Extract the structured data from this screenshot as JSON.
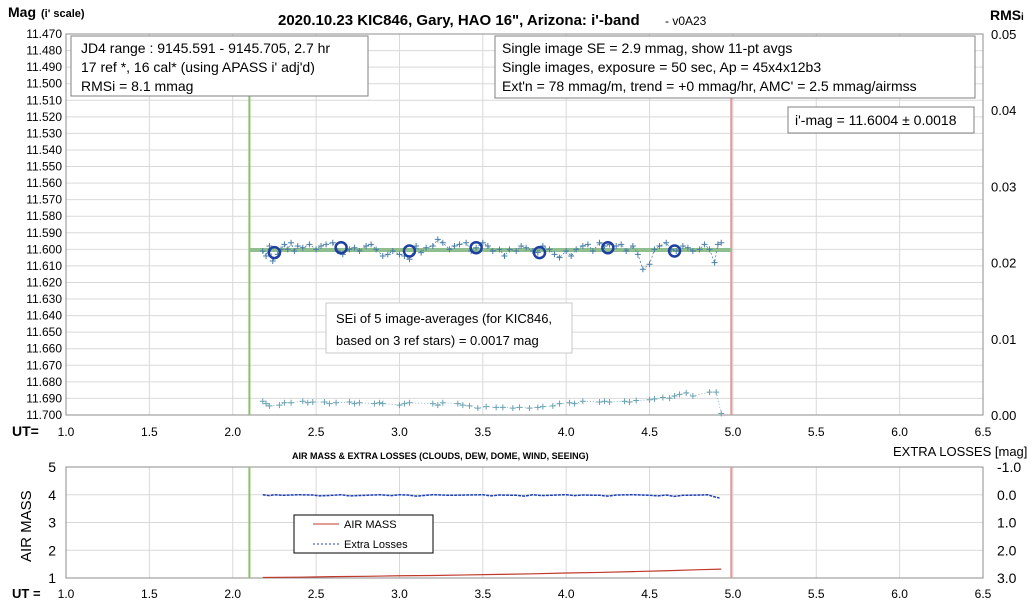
{
  "title": "2020.10.23 KIC846, Gary, HAO 16\", Arizona: i'-band",
  "version": "- v0A23",
  "y_left_label_main": "Mag",
  "y_left_label_sub": "(i' scale)",
  "y_right_label_main": "RMS",
  "y_right_label_sub": "i",
  "ut_label_top": "UT=",
  "ut_label_bottom": "UT =",
  "info_left": [
    "JD4 range : 9145.591 - 9145.705, 2.7  hr",
    "17 ref *, 16 cal* (using APASS i' adj'd)",
    "RMSi = 8.1 mmag"
  ],
  "info_right": [
    "Single image SE = 2.9 mmag, show 11-pt avgs",
    "Single images, exposure = 50 sec, Ap = 45x4x12b3",
    "Ext'n = 78 mmag/m, trend = +0 mmag/hr, AMC' = 2.5 mmag/airmss"
  ],
  "mag_box": "i'-mag = 11.6004 ± 0.0018",
  "se_note": [
    "SEi of 5 image-averages (for KIC846,",
    "based on 3 ref stars) = 0.0017 mag"
  ],
  "lower_title": "AIR MASS & EXTRA LOSSES (CLOUDS, DEW, DOME, WIND, SEEING)",
  "lower_y_left_label": "AIR MASS",
  "lower_y_right_label": "EXTRA LOSSES [mag]",
  "legend": {
    "air_mass": "AIR MASS",
    "extra_losses": "Extra Losses"
  },
  "colors": {
    "mag_points": "#4a7fa7",
    "mag_avgs": "#1f3fa0",
    "fit_line": "#8fbf8f",
    "rms_points": "#6aa3b3",
    "green_line": "#8dc06a",
    "red_line": "#e79a9a",
    "air_mass": "#c0392b",
    "extra_losses": "#1f3fb0"
  },
  "chart_data": [
    {
      "type": "scatter",
      "x": {
        "min": 1.0,
        "max": 6.5,
        "ticks": [
          "1.0",
          "1.5",
          "2.0",
          "2.5",
          "3.0",
          "3.5",
          "4.0",
          "4.5",
          "5.0",
          "5.5",
          "6.0",
          "6.5"
        ]
      },
      "y_left": {
        "min": 11.47,
        "max": 11.7,
        "reversed": true,
        "ticks": [
          "11.470",
          "11.480",
          "11.490",
          "11.500",
          "11.510",
          "11.520",
          "11.530",
          "11.540",
          "11.550",
          "11.560",
          "11.570",
          "11.580",
          "11.590",
          "11.600",
          "11.610",
          "11.620",
          "11.630",
          "11.640",
          "11.650",
          "11.660",
          "11.670",
          "11.680",
          "11.690",
          "11.700"
        ]
      },
      "y_right": {
        "min": 0.0,
        "max": 0.05,
        "ticks": [
          "0.05",
          "0.04",
          "0.03",
          "0.02",
          "0.01",
          "0.00"
        ]
      },
      "vertical_lines": {
        "green": 2.1,
        "red": 4.99
      },
      "fit_line": {
        "x": [
          2.1,
          4.99
        ],
        "y": 11.6004
      },
      "averages": {
        "x": [
          2.25,
          2.65,
          3.06,
          3.46,
          3.84,
          4.25,
          4.65
        ],
        "y": [
          11.602,
          11.599,
          11.601,
          11.599,
          11.602,
          11.599,
          11.601
        ]
      },
      "single_mag": {
        "x": [
          2.18,
          2.2,
          2.22,
          2.24,
          2.27,
          2.29,
          2.31,
          2.33,
          2.35,
          2.37,
          2.39,
          2.42,
          2.46,
          2.5,
          2.53,
          2.56,
          2.6,
          2.63,
          2.66,
          2.7,
          2.73,
          2.76,
          2.8,
          2.83,
          2.86,
          2.9,
          2.93,
          2.96,
          3.0,
          3.03,
          3.06,
          3.1,
          3.13,
          3.16,
          3.2,
          3.23,
          3.26,
          3.3,
          3.33,
          3.36,
          3.4,
          3.43,
          3.46,
          3.5,
          3.53,
          3.56,
          3.6,
          3.63,
          3.66,
          3.7,
          3.73,
          3.76,
          3.8,
          3.83,
          3.86,
          3.9,
          3.93,
          3.96,
          4.0,
          4.03,
          4.06,
          4.1,
          4.13,
          4.16,
          4.2,
          4.23,
          4.26,
          4.3,
          4.33,
          4.36,
          4.4,
          4.43,
          4.46,
          4.5,
          4.53,
          4.56,
          4.6,
          4.63,
          4.66,
          4.7,
          4.73,
          4.76,
          4.8,
          4.83,
          4.86,
          4.89,
          4.91,
          4.93
        ],
        "y": [
          11.601,
          11.604,
          11.598,
          11.607,
          11.603,
          11.6,
          11.597,
          11.6,
          11.596,
          11.601,
          11.598,
          11.599,
          11.597,
          11.6,
          11.598,
          11.597,
          11.596,
          11.601,
          11.603,
          11.6,
          11.599,
          11.601,
          11.598,
          11.597,
          11.6,
          11.604,
          11.603,
          11.601,
          11.603,
          11.604,
          11.606,
          11.598,
          11.602,
          11.599,
          11.598,
          11.594,
          11.596,
          11.6,
          11.598,
          11.597,
          11.596,
          11.601,
          11.599,
          11.596,
          11.598,
          11.601,
          11.6,
          11.604,
          11.6,
          11.601,
          11.598,
          11.599,
          11.601,
          11.602,
          11.598,
          11.6,
          11.603,
          11.605,
          11.601,
          11.604,
          11.6,
          11.598,
          11.597,
          11.601,
          11.596,
          11.598,
          11.597,
          11.598,
          11.597,
          11.601,
          11.598,
          11.603,
          11.612,
          11.609,
          11.6,
          11.598,
          11.596,
          11.6,
          11.601,
          11.598,
          11.599,
          11.601,
          11.6,
          11.597,
          11.6,
          11.608,
          11.597,
          11.596
        ]
      },
      "rms": {
        "x": [
          2.18,
          2.2,
          2.22,
          2.28,
          2.31,
          2.35,
          2.42,
          2.45,
          2.48,
          2.55,
          2.58,
          2.62,
          2.7,
          2.73,
          2.76,
          2.85,
          2.88,
          2.9,
          3.0,
          3.03,
          3.06,
          3.2,
          3.23,
          3.26,
          3.35,
          3.38,
          3.42,
          3.47,
          3.52,
          3.58,
          3.62,
          3.68,
          3.72,
          3.78,
          3.83,
          3.86,
          3.92,
          3.96,
          4.02,
          4.05,
          4.1,
          4.2,
          4.23,
          4.26,
          4.35,
          4.38,
          4.42,
          4.5,
          4.53,
          4.58,
          4.62,
          4.65,
          4.68,
          4.72,
          4.76,
          4.86,
          4.9,
          4.93
        ],
        "y": [
          0.0018,
          0.0015,
          0.0012,
          0.0013,
          0.0016,
          0.0016,
          0.0018,
          0.0016,
          0.0017,
          0.0017,
          0.0015,
          0.0016,
          0.0017,
          0.0015,
          0.0016,
          0.0015,
          0.0016,
          0.0015,
          0.0013,
          0.0015,
          0.0016,
          0.0015,
          0.0013,
          0.0016,
          0.0015,
          0.0013,
          0.0012,
          0.0009,
          0.0011,
          0.001,
          0.001,
          0.0009,
          0.001,
          0.0009,
          0.001,
          0.0011,
          0.0012,
          0.0015,
          0.0016,
          0.0015,
          0.0018,
          0.0017,
          0.0018,
          0.0017,
          0.0018,
          0.0017,
          0.0019,
          0.002,
          0.0021,
          0.0023,
          0.0022,
          0.0025,
          0.0027,
          0.0029,
          0.0025,
          0.003,
          0.003,
          0.0002
        ]
      }
    },
    {
      "type": "line",
      "x": {
        "min": 1.0,
        "max": 6.5,
        "ticks": [
          "1.0",
          "1.5",
          "2.0",
          "2.5",
          "3.0",
          "3.5",
          "4.0",
          "4.5",
          "5.0",
          "5.5",
          "6.0",
          "6.5"
        ]
      },
      "y_left": {
        "min": 1,
        "max": 5,
        "ticks": [
          "5",
          "4",
          "3",
          "2",
          "1"
        ]
      },
      "y_right": {
        "min": -1.0,
        "max": 3.0,
        "reversed": true,
        "ticks": [
          "-1.0",
          "0.0",
          "1.0",
          "2.0",
          "3.0"
        ]
      },
      "series": [
        {
          "name": "AIR MASS",
          "x": [
            2.18,
            2.4,
            2.6,
            2.8,
            3.0,
            3.2,
            3.4,
            3.6,
            3.8,
            4.0,
            4.2,
            4.4,
            4.6,
            4.8,
            4.93
          ],
          "y": [
            1.02,
            1.03,
            1.05,
            1.06,
            1.08,
            1.09,
            1.11,
            1.13,
            1.15,
            1.18,
            1.2,
            1.23,
            1.26,
            1.3,
            1.32
          ]
        },
        {
          "name": "Extra Losses",
          "x": [
            2.18,
            2.22,
            2.25,
            2.3,
            2.35,
            2.4,
            2.48,
            2.52,
            2.6,
            2.65,
            2.7,
            2.8,
            2.88,
            2.95,
            3.0,
            3.05,
            3.1,
            3.2,
            3.3,
            3.4,
            3.5,
            3.55,
            3.6,
            3.7,
            3.75,
            3.8,
            3.85,
            3.9,
            4.0,
            4.05,
            4.1,
            4.2,
            4.25,
            4.3,
            4.4,
            4.5,
            4.55,
            4.6,
            4.65,
            4.7,
            4.8,
            4.85,
            4.88,
            4.92
          ],
          "y": [
            0.0,
            0.03,
            0.0,
            0.02,
            0.01,
            0.0,
            0.01,
            0.04,
            0.02,
            0.0,
            0.04,
            0.02,
            0.0,
            0.03,
            0.0,
            0.01,
            0.05,
            0.0,
            0.02,
            0.01,
            0.0,
            0.04,
            0.01,
            0.02,
            0.05,
            0.0,
            0.03,
            0.02,
            0.0,
            0.03,
            0.01,
            0.02,
            0.05,
            0.01,
            0.0,
            0.02,
            0.04,
            0.01,
            0.06,
            0.02,
            0.01,
            0.0,
            0.06,
            0.12
          ]
        }
      ],
      "vertical_lines": {
        "green": 2.1,
        "red": 4.99
      }
    }
  ]
}
